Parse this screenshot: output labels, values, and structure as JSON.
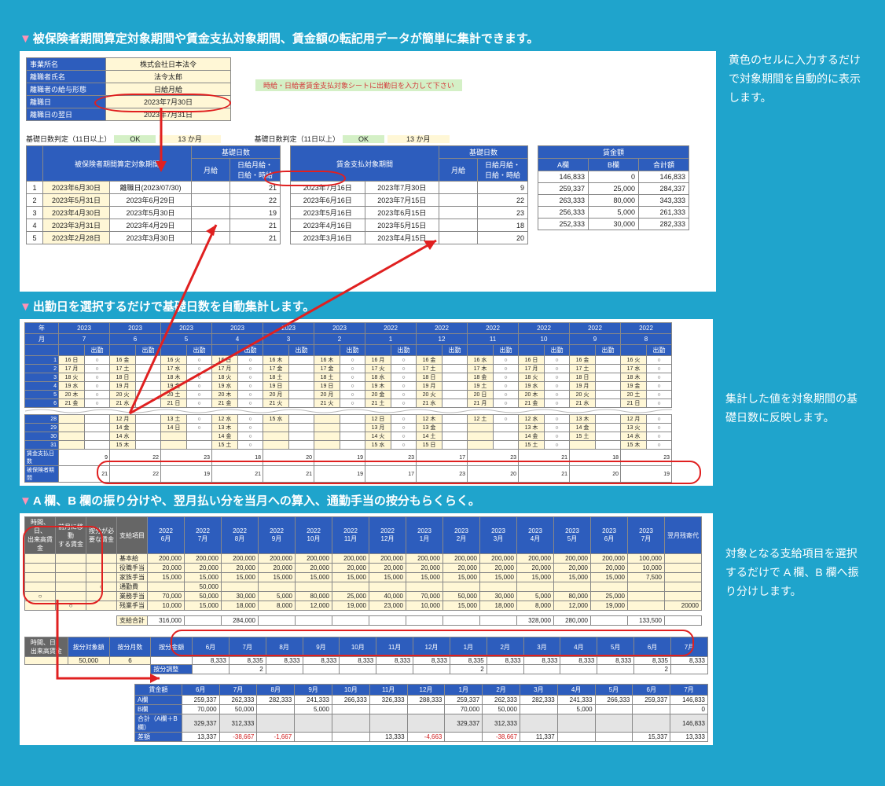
{
  "s1": {
    "heading": "被保険者期間算定対象期間や賃金支払対象期間、賃金額の転記用データが簡単に集計できます。",
    "side": "黄色のセルに入力するだけで対象期間を自動的に表示します。",
    "info": {
      "r1l": "事業所名",
      "r1v": "株式会社日本法令",
      "r2l": "離職者氏名",
      "r2v": "法令太郎",
      "r3l": "離職者の給与形態",
      "r3v": "日給月給",
      "r4l": "離職日",
      "r4v": "2023年7月30日",
      "r5l": "離職日の翌日",
      "r5v": "2023年7月31日"
    },
    "notice": "時給・日給者賃金支払対象シートに出勤日を入力して下さい",
    "judgL": {
      "t": "基礎日数判定（11日以上）",
      "ok": "OK",
      "m": "13 か月"
    },
    "judgR": {
      "t": "基礎日数判定（11日以上）",
      "ok": "OK",
      "m": "13 か月"
    },
    "hA": {
      "a": "被保険者期間算定対象期間",
      "b": "基礎日数",
      "c": "月給",
      "d": "日給月給・\n日給・時給"
    },
    "hB": {
      "a": "賃金支払対象期間",
      "b": "基礎日数",
      "c": "月給",
      "d": "日給月給・\n日給・時給"
    },
    "hC": {
      "a": "賃金額",
      "b": "A欄",
      "c": "B欄",
      "d": "合計額"
    },
    "rA": [
      {
        "n": "1",
        "a": "2023年6月30日",
        "b": "離職日(2023/07/30)",
        "m": "",
        "d": "21"
      },
      {
        "n": "2",
        "a": "2023年5月31日",
        "b": "2023年6月29日",
        "m": "",
        "d": "22"
      },
      {
        "n": "3",
        "a": "2023年4月30日",
        "b": "2023年5月30日",
        "m": "",
        "d": "19"
      },
      {
        "n": "4",
        "a": "2023年3月31日",
        "b": "2023年4月29日",
        "m": "",
        "d": "21"
      },
      {
        "n": "5",
        "a": "2023年2月28日",
        "b": "2023年3月30日",
        "m": "",
        "d": "21"
      }
    ],
    "rB": [
      {
        "a": "2023年7月16日",
        "b": "2023年7月30日",
        "m": "",
        "d": "9"
      },
      {
        "a": "2023年6月16日",
        "b": "2023年7月15日",
        "m": "",
        "d": "22"
      },
      {
        "a": "2023年5月16日",
        "b": "2023年6月15日",
        "m": "",
        "d": "23"
      },
      {
        "a": "2023年4月16日",
        "b": "2023年5月15日",
        "m": "",
        "d": "18"
      },
      {
        "a": "2023年3月16日",
        "b": "2023年4月15日",
        "m": "",
        "d": "20"
      }
    ],
    "rC": [
      {
        "a": "146,833",
        "b": "0",
        "t": "146,833"
      },
      {
        "a": "259,337",
        "b": "25,000",
        "t": "284,337"
      },
      {
        "a": "263,333",
        "b": "80,000",
        "t": "343,333"
      },
      {
        "a": "256,333",
        "b": "5,000",
        "t": "261,333"
      },
      {
        "a": "252,333",
        "b": "30,000",
        "t": "282,333"
      }
    ]
  },
  "s2": {
    "heading": "出勤日を選択するだけで基礎日数を自動集計します。",
    "side": "集計した値を対象期間の基礎日数に反映します。",
    "yh": "年",
    "mh": "月",
    "years": [
      "2023",
      "2023",
      "2023",
      "2023",
      "2023",
      "2023",
      "2022",
      "2022",
      "2022",
      "2022",
      "2022",
      "2022"
    ],
    "months": [
      "7",
      "6",
      "5",
      "4",
      "3",
      "2",
      "1",
      "12",
      "11",
      "10",
      "9",
      "8"
    ],
    "sub": "出勤",
    "rows": [
      {
        "d": "1",
        "c": [
          "16 日",
          "16 金",
          "16 火",
          "16 日",
          "16 木",
          "16 木",
          "16 月",
          "16 金",
          "16 水",
          "16 日",
          "16 金",
          "16 火"
        ]
      },
      {
        "d": "2",
        "c": [
          "17 月",
          "17 土",
          "17 水",
          "17 月",
          "17 金",
          "17 金",
          "17 火",
          "17 土",
          "17 木",
          "17 月",
          "17 土",
          "17 水"
        ]
      },
      {
        "d": "3",
        "c": [
          "18 火",
          "18 日",
          "18 木",
          "18 火",
          "18 土",
          "18 土",
          "18 水",
          "18 日",
          "18 金",
          "18 火",
          "18 日",
          "18 木"
        ]
      },
      {
        "d": "4",
        "c": [
          "19 水",
          "19 月",
          "19 金",
          "19 水",
          "19 日",
          "19 日",
          "19 木",
          "19 月",
          "19 土",
          "19 水",
          "19 月",
          "19 金"
        ]
      },
      {
        "d": "5",
        "c": [
          "20 木",
          "20 火",
          "20 土",
          "20 木",
          "20 月",
          "20 月",
          "20 金",
          "20 火",
          "20 日",
          "20 木",
          "20 火",
          "20 土"
        ]
      },
      {
        "d": "6",
        "c": [
          "21 金",
          "21 水",
          "21 日",
          "21 金",
          "21 火",
          "21 火",
          "21 土",
          "21 水",
          "21 月",
          "21 金",
          "21 水",
          "21 日"
        ]
      }
    ],
    "rows2": [
      {
        "d": "28",
        "c": [
          "",
          "12 月",
          "13 土",
          "12 水",
          "15 水",
          "",
          "12 日",
          "12 木",
          "12 土",
          "12 水",
          "13 木",
          "12 月"
        ]
      },
      {
        "d": "29",
        "c": [
          "",
          "14 金",
          "14 日",
          "13 木",
          "",
          "",
          "13 月",
          "13 金",
          "",
          "13 木",
          "14 金",
          "13 火"
        ]
      },
      {
        "d": "30",
        "c": [
          "",
          "14 水",
          "",
          "14 金",
          "",
          "",
          "14 火",
          "14 土",
          "",
          "14 金",
          "15 土",
          "14 水"
        ]
      },
      {
        "d": "31",
        "c": [
          "",
          "15 木",
          "",
          "15 土",
          "",
          "",
          "15 水",
          "15 日",
          "",
          "15 土",
          "",
          "15 木"
        ]
      }
    ],
    "sum1l": "賃金支払日数",
    "sum1": [
      "9",
      "22",
      "23",
      "18",
      "20",
      "19",
      "23",
      "17",
      "23",
      "21",
      "18",
      "23"
    ],
    "sum2l": "被保険者期間",
    "sum2": [
      "21",
      "22",
      "19",
      "21",
      "21",
      "19",
      "17",
      "23",
      "20",
      "21",
      "20",
      "19"
    ]
  },
  "s3": {
    "heading": "A 欄、B 欄の振り分けや、翌月払い分を当月への算入、通勤手当の按分もらくらく。",
    "side": "対象となる支給項目を選択するだけで A 欄、B 欄へ振り分けします。",
    "h1": [
      "時間、日、\n出来高賃金",
      "前月に移動\nする賃金",
      "按分が必\n要な賃金",
      "支給項目"
    ],
    "months": [
      "2022\n6月",
      "2022\n7月",
      "2022\n8月",
      "2022\n9月",
      "2022\n10月",
      "2022\n11月",
      "2022\n12月",
      "2023\n1月",
      "2023\n2月",
      "2023\n3月",
      "2023\n4月",
      "2023\n5月",
      "2023\n6月",
      "2023\n7月",
      "翌月残寄代"
    ],
    "items": [
      {
        "l": "基本給",
        "c": [
          "",
          "",
          ""
        ],
        "v": [
          "200,000",
          "200,000",
          "200,000",
          "200,000",
          "200,000",
          "200,000",
          "200,000",
          "200,000",
          "200,000",
          "200,000",
          "200,000",
          "200,000",
          "200,000",
          "100,000",
          ""
        ]
      },
      {
        "l": "役職手当",
        "c": [
          "",
          "",
          ""
        ],
        "v": [
          "20,000",
          "20,000",
          "20,000",
          "20,000",
          "20,000",
          "20,000",
          "20,000",
          "20,000",
          "20,000",
          "20,000",
          "20,000",
          "20,000",
          "20,000",
          "10,000",
          ""
        ]
      },
      {
        "l": "家族手当",
        "c": [
          "",
          "",
          ""
        ],
        "v": [
          "15,000",
          "15,000",
          "15,000",
          "15,000",
          "15,000",
          "15,000",
          "15,000",
          "15,000",
          "15,000",
          "15,000",
          "15,000",
          "15,000",
          "15,000",
          "7,500",
          ""
        ]
      },
      {
        "l": "通勤費",
        "c": [
          "",
          "",
          "○"
        ],
        "v": [
          "",
          "50,000",
          "",
          "",
          "",
          "",
          "",
          "",
          "",
          "",
          "",
          "",
          "",
          "",
          ""
        ]
      },
      {
        "l": "業務手当",
        "c": [
          "○",
          "",
          ""
        ],
        "v": [
          "70,000",
          "50,000",
          "30,000",
          "5,000",
          "80,000",
          "25,000",
          "40,000",
          "70,000",
          "50,000",
          "30,000",
          "5,000",
          "80,000",
          "25,000",
          "",
          ""
        ]
      },
      {
        "l": "残業手当",
        "c": [
          "",
          "○",
          ""
        ],
        "v": [
          "10,000",
          "15,000",
          "18,000",
          "8,000",
          "12,000",
          "19,000",
          "23,000",
          "10,000",
          "15,000",
          "18,000",
          "8,000",
          "12,000",
          "19,000",
          "",
          "20000"
        ]
      }
    ],
    "totl": "支給合計",
    "tot": [
      "316,000",
      "",
      "284,000",
      "",
      "",
      "",
      "",
      "",
      "",
      "",
      "328,000",
      "280,000",
      "",
      "133,500",
      ""
    ],
    "an": {
      "h": [
        "時間、日、\n出来高賃金",
        "按分対象額",
        "按分月数",
        "按分金額",
        "6月",
        "7月",
        "8月",
        "9月",
        "10月",
        "11月",
        "12月",
        "1月",
        "2月",
        "3月",
        "4月",
        "5月",
        "6月",
        "7月"
      ],
      "val": "50,000",
      "mon": "6",
      "row1": [
        "8,333",
        "8,335",
        "8,333",
        "8,333",
        "8,333",
        "8,333",
        "8,333",
        "8,335",
        "8,333",
        "8,333",
        "8,333",
        "8,333",
        "8,335",
        "8,333"
      ],
      "adjl": "按分調整",
      "adj": [
        "",
        "2",
        "",
        "",
        "",
        "",
        "",
        "2",
        "",
        "",
        "",
        "",
        "2",
        ""
      ]
    },
    "sm": {
      "h": [
        "賃金額",
        "6月",
        "7月",
        "8月",
        "9月",
        "10月",
        "11月",
        "12月",
        "1月",
        "2月",
        "3月",
        "4月",
        "5月",
        "6月",
        "7月"
      ],
      "rA": {
        "l": "A欄",
        "v": [
          "259,337",
          "262,333",
          "282,333",
          "241,333",
          "266,333",
          "326,333",
          "288,333",
          "259,337",
          "262,333",
          "282,333",
          "241,333",
          "266,333",
          "259,337",
          "146,833"
        ]
      },
      "rB": {
        "l": "B欄",
        "v": [
          "70,000",
          "50,000",
          "",
          "5,000",
          "",
          "",
          "",
          "70,000",
          "50,000",
          "",
          "5,000",
          "",
          "",
          "0"
        ]
      },
      "rT": {
        "l": "合計（A欄＋B欄）",
        "v": [
          "329,337",
          "312,333",
          "",
          "",
          "",
          "",
          "",
          "329,337",
          "312,333",
          "",
          "",
          "",
          "",
          "146,833"
        ]
      },
      "rD": {
        "l": "差額",
        "v": [
          "13,337",
          "-38,667",
          "-1,667",
          "",
          "",
          "13,333",
          "-4,663",
          "",
          "-38,667",
          "11,337",
          "",
          "",
          "15,337",
          "13,333"
        ]
      }
    }
  }
}
